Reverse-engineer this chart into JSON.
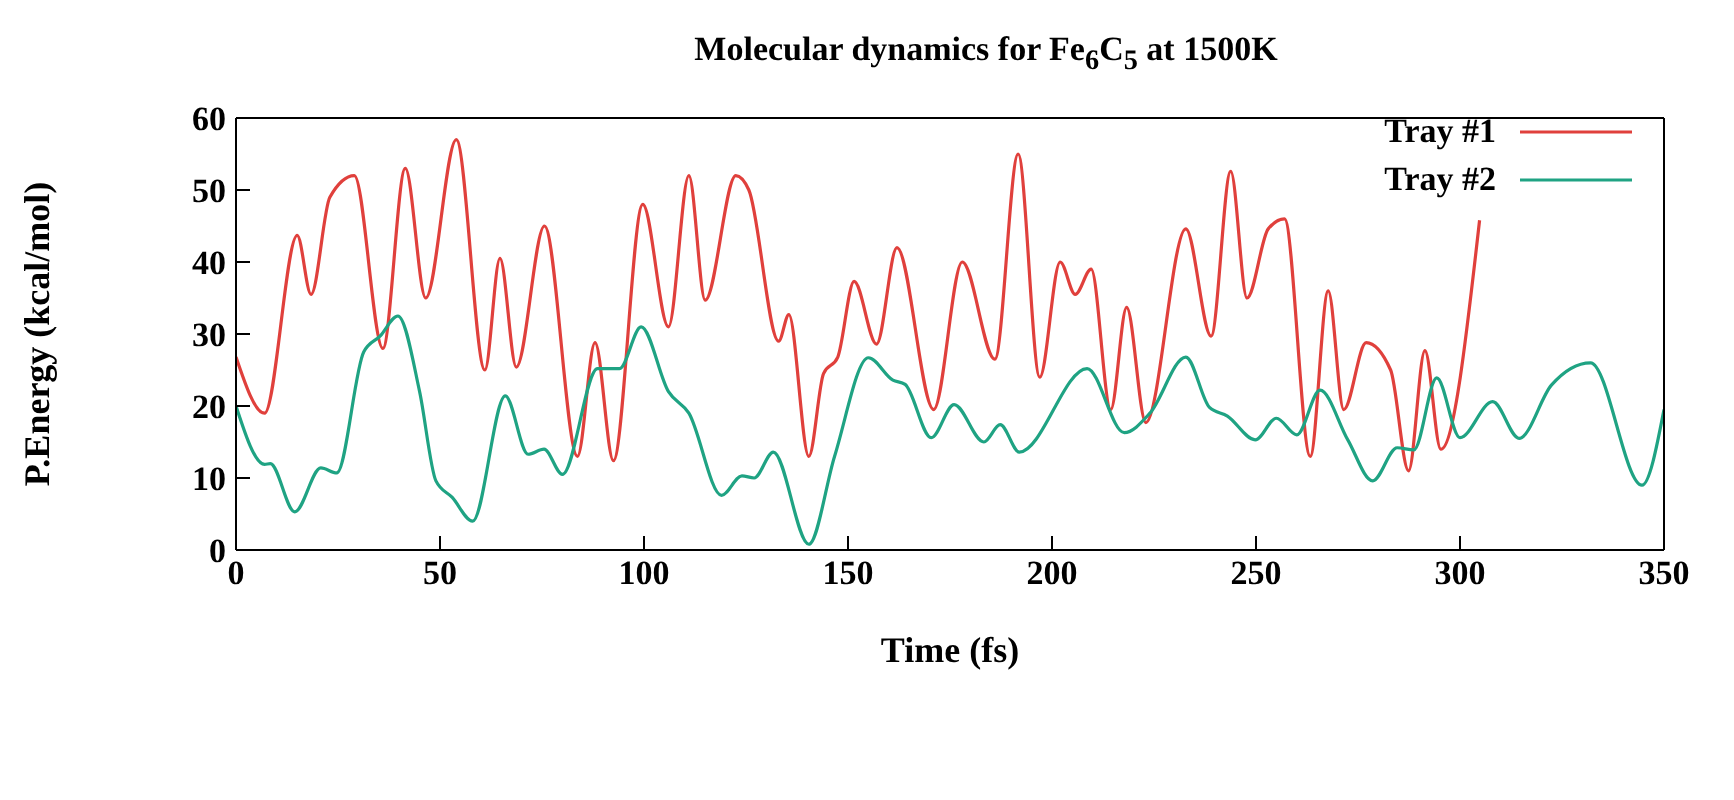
{
  "chart_data": {
    "type": "line",
    "title": "Molecular dynamics for Fe$_{6}$C$_{5}$ at 1500K",
    "xlabel": "Time (fs)",
    "ylabel": "P.Energy (kcal/mol)",
    "xlim": [
      0,
      350
    ],
    "xticks": [
      0,
      50,
      100,
      150,
      200,
      250,
      300,
      350
    ],
    "ylim": [
      0,
      60
    ],
    "yticks": [
      0,
      10,
      20,
      30,
      40,
      50,
      60
    ],
    "grid": false,
    "legend": "top right",
    "marker": "none",
    "line_style": "solid",
    "series": [
      {
        "name": "Tray #1",
        "color": "#e0403c",
        "x": [
          0,
          7,
          15,
          18.4,
          23,
          29,
          36,
          41.5,
          46.5,
          54,
          61,
          64.7,
          68.7,
          75.6,
          83.7,
          88,
          92.5,
          99.7,
          106,
          111,
          115,
          122.5,
          125.7,
          133,
          135.5,
          140.4,
          144,
          147.5,
          151.5,
          157,
          162,
          171,
          178,
          186,
          191.7,
          197,
          202,
          205.7,
          209.6,
          214.4,
          218.3,
          223,
          232.8,
          239,
          243.8,
          247.8,
          253,
          257,
          263.3,
          267.7,
          271.5,
          277,
          283,
          287.4,
          291.4,
          295.3,
          304.8
        ],
        "values": [
          26.8,
          19,
          43.7,
          35.5,
          49,
          52,
          28,
          53,
          35,
          57,
          25,
          40.5,
          25.4,
          45,
          13,
          28.8,
          12.4,
          48,
          31,
          52,
          34.7,
          52,
          50,
          29,
          32.7,
          13,
          24.5,
          26.8,
          37.3,
          28.6,
          42,
          19.5,
          40,
          26.5,
          55,
          24,
          40,
          35.5,
          39,
          19.5,
          33.7,
          17.7,
          44.6,
          29.7,
          52.6,
          35,
          44.6,
          46,
          13,
          36,
          19.5,
          28.8,
          25,
          11,
          27.7,
          14,
          45.8
        ]
      },
      {
        "name": "Tray #2",
        "color": "#1fa383",
        "x": [
          0,
          7,
          8.4,
          14.4,
          20.8,
          24.7,
          31.3,
          35.3,
          39.7,
          45,
          49,
          53,
          58,
          66,
          71.6,
          75.5,
          80,
          88.6,
          94,
          99.3,
          106,
          111,
          119,
          124,
          127,
          131.7,
          140.4,
          146.7,
          155,
          161,
          164,
          170.4,
          176,
          183.3,
          187.3,
          192,
          208.6,
          217.7,
          224,
          232.8,
          238.6,
          243,
          249.8,
          255,
          260,
          265.7,
          272.5,
          278.6,
          284.6,
          288.7,
          294.3,
          300,
          308,
          314.5,
          322.4,
          332,
          344.6,
          350
        ],
        "values": [
          20,
          11.9,
          12,
          5.3,
          11.4,
          10.7,
          27.5,
          29.7,
          32.5,
          22,
          9.6,
          7.3,
          4,
          21.4,
          13.3,
          14,
          10.5,
          25.2,
          25.2,
          31,
          22,
          19,
          7.6,
          10.3,
          10,
          13.6,
          0.8,
          13,
          26.7,
          23.6,
          23,
          15.6,
          20.2,
          15,
          17.4,
          13.6,
          25.2,
          16.3,
          19,
          26.8,
          19.8,
          18.6,
          15.3,
          18.3,
          16,
          22.2,
          15.3,
          9.6,
          14.2,
          13.9,
          23.9,
          15.6,
          20.6,
          15.5,
          22.9,
          26,
          9,
          19.5
        ]
      }
    ]
  }
}
